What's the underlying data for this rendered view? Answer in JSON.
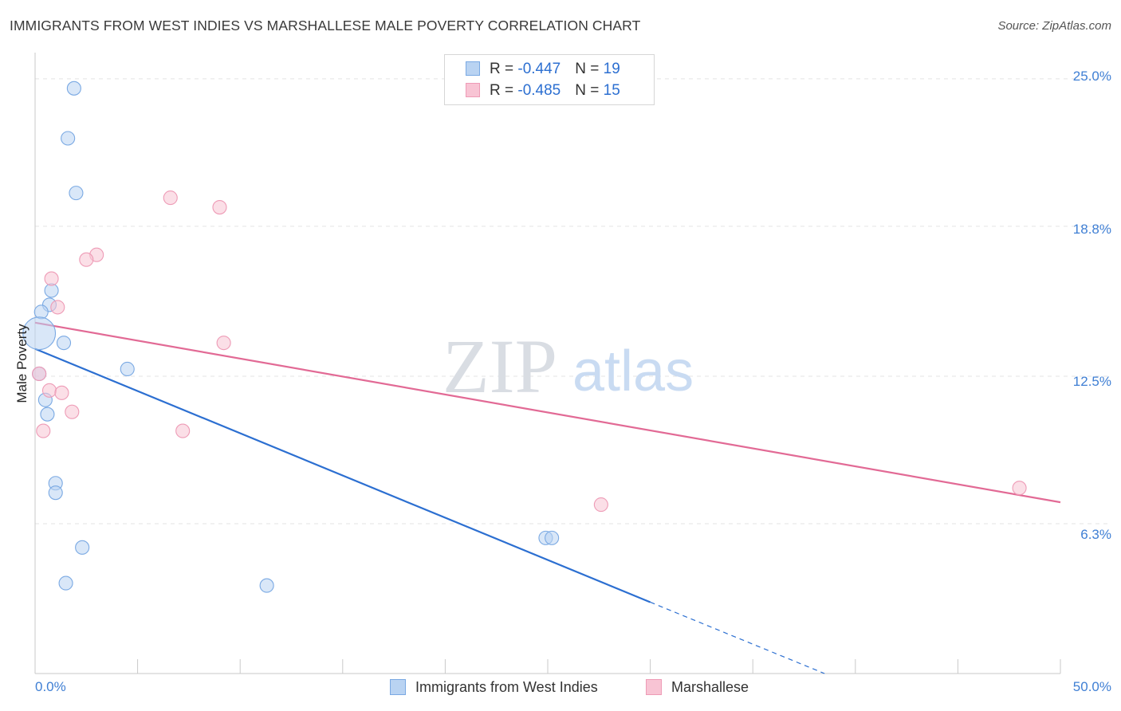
{
  "title": "IMMIGRANTS FROM WEST INDIES VS MARSHALLESE MALE POVERTY CORRELATION CHART",
  "source": "Source: ZipAtlas.com",
  "watermark": {
    "zip": "ZIP",
    "atlas": "atlas"
  },
  "legend_top": [
    {
      "r_label": "R = ",
      "r_value": "-0.447",
      "n_label": "N = ",
      "n_value": "19"
    },
    {
      "r_label": "R = ",
      "r_value": "-0.485",
      "n_label": "N = ",
      "n_value": "15"
    }
  ],
  "legend_bottom": [
    "Immigrants from West Indies",
    "Marshallese"
  ],
  "colors": {
    "blue_fill": "#b9d3f2",
    "blue_stroke": "#7aa9e3",
    "blue_line": "#2c6fd1",
    "pink_fill": "#f8c4d4",
    "pink_stroke": "#ee9bb6",
    "pink_line": "#e26a95",
    "axis_label": "#3f7fd4",
    "grid": "#e3e3e3"
  },
  "chart_data": {
    "type": "scatter",
    "title": "IMMIGRANTS FROM WEST INDIES VS MARSHALLESE MALE POVERTY CORRELATION CHART",
    "xlabel": "",
    "ylabel": "Male Poverty",
    "xlim": [
      0,
      50
    ],
    "ylim": [
      0,
      25.8
    ],
    "y_ticks": [
      6.3,
      12.5,
      18.8,
      25.0
    ],
    "y_tick_labels": [
      "6.3%",
      "12.5%",
      "18.8%",
      "25.0%"
    ],
    "x_tick_labels": [
      "0.0%",
      "50.0%"
    ],
    "series": [
      {
        "name": "Immigrants from West Indies",
        "color": "blue",
        "points": [
          {
            "x": 1.9,
            "y": 24.6,
            "size": 1
          },
          {
            "x": 1.6,
            "y": 22.5,
            "size": 1
          },
          {
            "x": 2.0,
            "y": 20.2,
            "size": 1
          },
          {
            "x": 0.8,
            "y": 16.1,
            "size": 1
          },
          {
            "x": 0.7,
            "y": 15.5,
            "size": 1
          },
          {
            "x": 0.3,
            "y": 15.2,
            "size": 1
          },
          {
            "x": 0.2,
            "y": 14.3,
            "size": 2.4
          },
          {
            "x": 1.4,
            "y": 13.9,
            "size": 1
          },
          {
            "x": 4.5,
            "y": 12.8,
            "size": 1
          },
          {
            "x": 0.2,
            "y": 12.6,
            "size": 1
          },
          {
            "x": 0.5,
            "y": 11.5,
            "size": 1
          },
          {
            "x": 0.6,
            "y": 10.9,
            "size": 1
          },
          {
            "x": 1.0,
            "y": 8.0,
            "size": 1
          },
          {
            "x": 1.0,
            "y": 7.6,
            "size": 1
          },
          {
            "x": 2.3,
            "y": 5.3,
            "size": 1
          },
          {
            "x": 1.5,
            "y": 3.8,
            "size": 1
          },
          {
            "x": 11.3,
            "y": 3.7,
            "size": 1
          },
          {
            "x": 24.9,
            "y": 5.7,
            "size": 1
          },
          {
            "x": 25.2,
            "y": 5.7,
            "size": 1
          }
        ],
        "trend": {
          "x0": 0,
          "y0": 13.65,
          "x1": 30,
          "y1": 3.0,
          "dash_to_x": 38.5,
          "dash_to_y": 0
        }
      },
      {
        "name": "Marshallese",
        "color": "pink",
        "points": [
          {
            "x": 6.6,
            "y": 20.0,
            "size": 1
          },
          {
            "x": 9.0,
            "y": 19.6,
            "size": 1
          },
          {
            "x": 3.0,
            "y": 17.6,
            "size": 1
          },
          {
            "x": 2.5,
            "y": 17.4,
            "size": 1
          },
          {
            "x": 0.8,
            "y": 16.6,
            "size": 1
          },
          {
            "x": 1.1,
            "y": 15.4,
            "size": 1
          },
          {
            "x": 9.2,
            "y": 13.9,
            "size": 1
          },
          {
            "x": 0.2,
            "y": 12.6,
            "size": 1
          },
          {
            "x": 0.7,
            "y": 11.9,
            "size": 1
          },
          {
            "x": 1.3,
            "y": 11.8,
            "size": 1
          },
          {
            "x": 1.8,
            "y": 11.0,
            "size": 1
          },
          {
            "x": 0.4,
            "y": 10.2,
            "size": 1
          },
          {
            "x": 7.2,
            "y": 10.2,
            "size": 1
          },
          {
            "x": 27.6,
            "y": 7.1,
            "size": 1
          },
          {
            "x": 48.0,
            "y": 7.8,
            "size": 1
          }
        ],
        "trend": {
          "x0": 0,
          "y0": 14.75,
          "x1": 50,
          "y1": 7.2
        }
      }
    ]
  }
}
